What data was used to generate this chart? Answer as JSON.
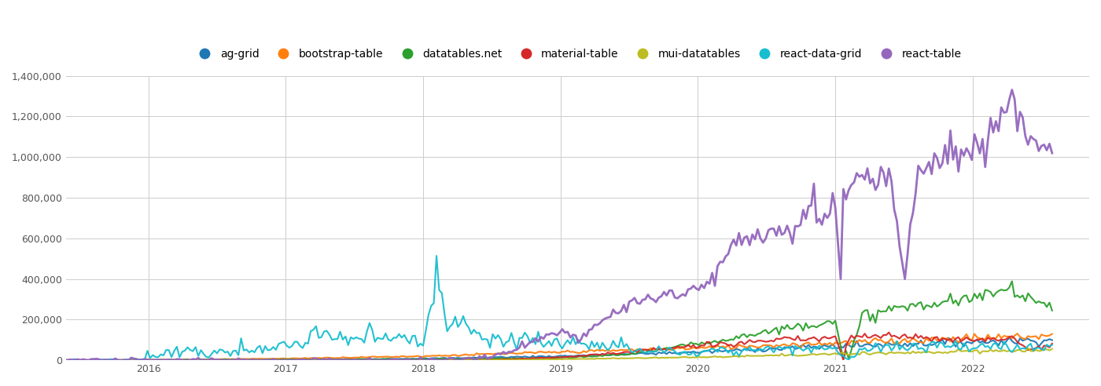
{
  "title": "",
  "background_color": "#ffffff",
  "grid_color": "#cccccc",
  "series": [
    {
      "label": "ag-grid",
      "color": "#1f77b4",
      "linewidth": 1.5
    },
    {
      "label": "bootstrap-table",
      "color": "#ff7f0e",
      "linewidth": 1.5
    },
    {
      "label": "datatables.net",
      "color": "#2ca02c",
      "linewidth": 1.5
    },
    {
      "label": "material-table",
      "color": "#d62728",
      "linewidth": 1.5
    },
    {
      "label": "mui-datatables",
      "color": "#bcbd22",
      "linewidth": 1.5
    },
    {
      "label": "react-data-grid",
      "color": "#17becf",
      "linewidth": 1.5
    },
    {
      "label": "react-table",
      "color": "#9467bd",
      "linewidth": 2.0
    }
  ],
  "ylim": [
    0,
    1400000
  ],
  "yticks": [
    0,
    200000,
    400000,
    600000,
    800000,
    1000000,
    1200000,
    1400000
  ],
  "xticks_years": [
    2016,
    2017,
    2018,
    2019,
    2020,
    2021,
    2022
  ],
  "xlim_start": 2015.4,
  "xlim_end": 2022.85
}
